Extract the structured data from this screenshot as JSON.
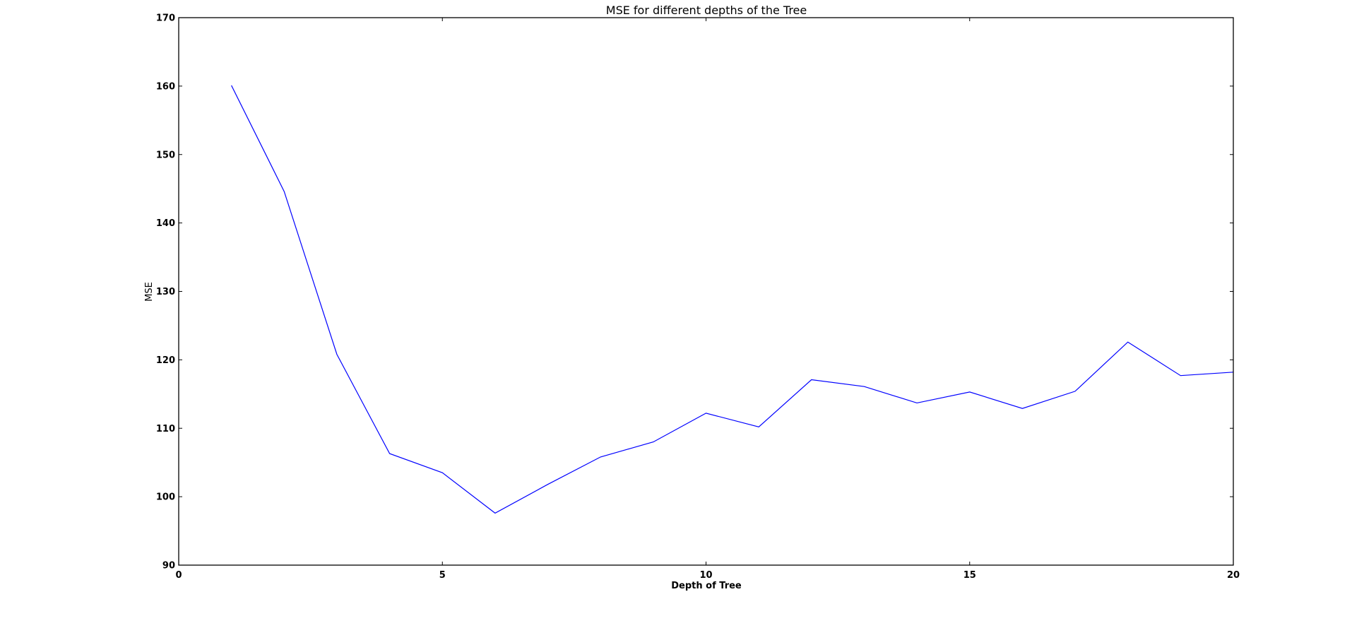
{
  "chart_data": {
    "type": "line",
    "title": "MSE for different depths of the Tree",
    "xlabel": "Depth of Tree",
    "ylabel": "MSE",
    "xlim": [
      0,
      20
    ],
    "ylim": [
      90,
      170
    ],
    "x_ticks": [
      0,
      5,
      10,
      15,
      20
    ],
    "y_ticks": [
      90,
      100,
      110,
      120,
      130,
      140,
      150,
      160,
      170
    ],
    "grid": false,
    "series": [
      {
        "color": "#0000ff",
        "x": [
          1,
          2,
          3,
          4,
          5,
          6,
          7,
          8,
          9,
          10,
          11,
          12,
          13,
          14,
          15,
          16,
          17,
          18,
          19,
          20
        ],
        "y": [
          160.1,
          144.6,
          120.8,
          106.3,
          103.5,
          97.6,
          101.8,
          105.8,
          108.0,
          112.2,
          110.2,
          117.1,
          116.1,
          113.7,
          115.3,
          112.9,
          115.4,
          122.6,
          117.7,
          118.2
        ]
      }
    ]
  }
}
